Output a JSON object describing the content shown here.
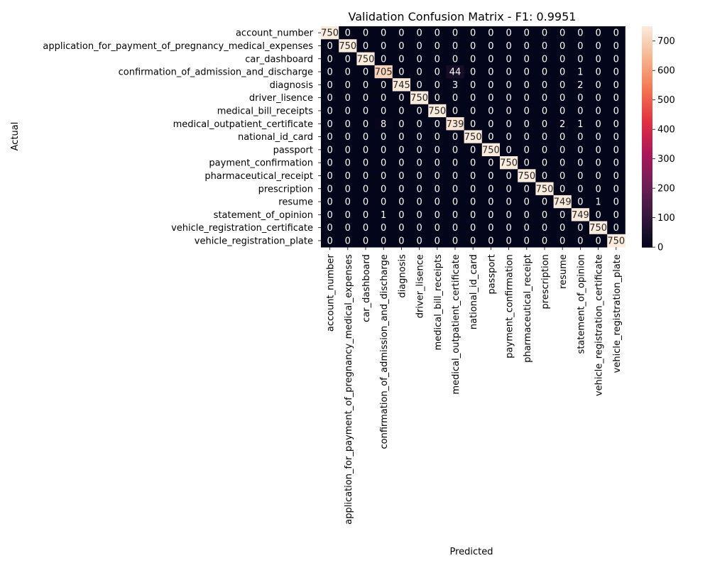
{
  "chart_data": {
    "type": "heatmap",
    "title": "Validation Confusion Matrix - F1: 0.9951",
    "xlabel": "Predicted",
    "ylabel": "Actual",
    "categories": [
      "account_number",
      "application_for_payment_of_pregnancy_medical_expenses",
      "car_dashboard",
      "confirmation_of_admission_and_discharge",
      "diagnosis",
      "driver_lisence",
      "medical_bill_receipts",
      "medical_outpatient_certificate",
      "national_id_card",
      "passport",
      "payment_confirmation",
      "pharmaceutical_receipt",
      "prescription",
      "resume",
      "statement_of_opinion",
      "vehicle_registration_certificate",
      "vehicle_registration_plate"
    ],
    "matrix": [
      [
        750,
        0,
        0,
        0,
        0,
        0,
        0,
        0,
        0,
        0,
        0,
        0,
        0,
        0,
        0,
        0,
        0
      ],
      [
        0,
        750,
        0,
        0,
        0,
        0,
        0,
        0,
        0,
        0,
        0,
        0,
        0,
        0,
        0,
        0,
        0
      ],
      [
        0,
        0,
        750,
        0,
        0,
        0,
        0,
        0,
        0,
        0,
        0,
        0,
        0,
        0,
        0,
        0,
        0
      ],
      [
        0,
        0,
        0,
        705,
        0,
        0,
        0,
        44,
        0,
        0,
        0,
        0,
        0,
        0,
        1,
        0,
        0
      ],
      [
        0,
        0,
        0,
        0,
        745,
        0,
        0,
        3,
        0,
        0,
        0,
        0,
        0,
        0,
        2,
        0,
        0
      ],
      [
        0,
        0,
        0,
        0,
        0,
        750,
        0,
        0,
        0,
        0,
        0,
        0,
        0,
        0,
        0,
        0,
        0
      ],
      [
        0,
        0,
        0,
        0,
        0,
        0,
        750,
        0,
        0,
        0,
        0,
        0,
        0,
        0,
        0,
        0,
        0
      ],
      [
        0,
        0,
        0,
        8,
        0,
        0,
        0,
        739,
        0,
        0,
        0,
        0,
        0,
        2,
        1,
        0,
        0
      ],
      [
        0,
        0,
        0,
        0,
        0,
        0,
        0,
        0,
        750,
        0,
        0,
        0,
        0,
        0,
        0,
        0,
        0
      ],
      [
        0,
        0,
        0,
        0,
        0,
        0,
        0,
        0,
        0,
        750,
        0,
        0,
        0,
        0,
        0,
        0,
        0
      ],
      [
        0,
        0,
        0,
        0,
        0,
        0,
        0,
        0,
        0,
        0,
        750,
        0,
        0,
        0,
        0,
        0,
        0
      ],
      [
        0,
        0,
        0,
        0,
        0,
        0,
        0,
        0,
        0,
        0,
        0,
        750,
        0,
        0,
        0,
        0,
        0
      ],
      [
        0,
        0,
        0,
        0,
        0,
        0,
        0,
        0,
        0,
        0,
        0,
        0,
        750,
        0,
        0,
        0,
        0
      ],
      [
        0,
        0,
        0,
        0,
        0,
        0,
        0,
        0,
        0,
        0,
        0,
        0,
        0,
        749,
        0,
        1,
        0
      ],
      [
        0,
        0,
        0,
        1,
        0,
        0,
        0,
        0,
        0,
        0,
        0,
        0,
        0,
        0,
        749,
        0,
        0
      ],
      [
        0,
        0,
        0,
        0,
        0,
        0,
        0,
        0,
        0,
        0,
        0,
        0,
        0,
        0,
        0,
        750,
        0
      ],
      [
        0,
        0,
        0,
        0,
        0,
        0,
        0,
        0,
        0,
        0,
        0,
        0,
        0,
        0,
        0,
        0,
        750
      ]
    ],
    "colorbar": {
      "range": [
        0,
        750
      ],
      "ticks": [
        "0",
        "100",
        "200",
        "300",
        "400",
        "500",
        "600",
        "700"
      ]
    },
    "colormap": [
      "#03051a",
      "#36193e",
      "#701f57",
      "#ae1759",
      "#e13342",
      "#f37651",
      "#f6b48f",
      "#faebdd"
    ]
  }
}
